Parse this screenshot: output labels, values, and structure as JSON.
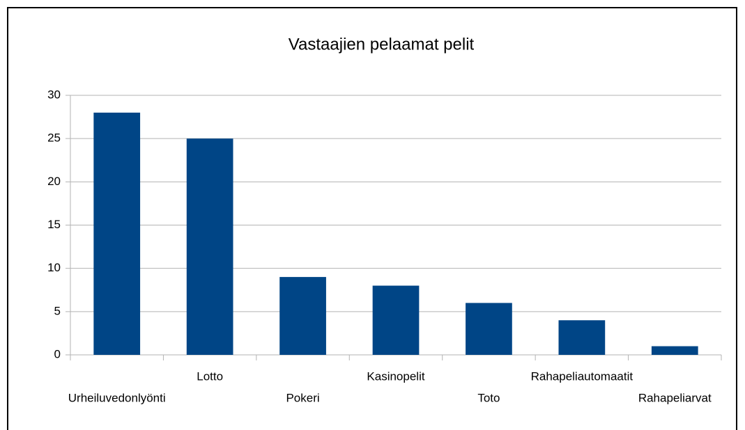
{
  "chart_data": {
    "type": "bar",
    "title": "Vastaajien pelaamat pelit",
    "categories": [
      "Urheiluvedonlyönti",
      "Lotto",
      "Pokeri",
      "Kasinopelit",
      "Toto",
      "Rahapeliautomaatit",
      "Rahapeliarvat"
    ],
    "values": [
      28,
      25,
      9,
      8,
      6,
      4,
      1
    ],
    "color": "#004586",
    "ylim": [
      0,
      30
    ],
    "yticks": [
      0,
      5,
      10,
      15,
      20,
      25,
      30
    ],
    "grid": true
  }
}
